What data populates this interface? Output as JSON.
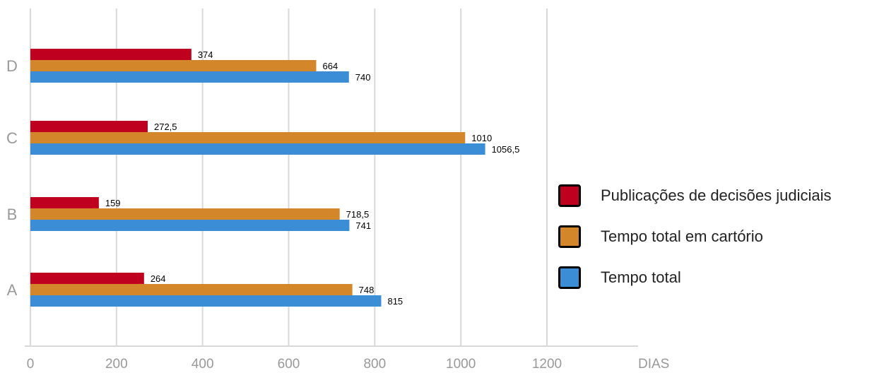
{
  "chart_data": {
    "type": "bar",
    "orientation": "horizontal",
    "categories": [
      "A",
      "B",
      "C",
      "D"
    ],
    "series": [
      {
        "name": "Publicações de decisões judiciais",
        "color": "#c0001f",
        "values": [
          264,
          159,
          272.5,
          374
        ],
        "labels": [
          "264",
          "159",
          "272,5",
          "374"
        ]
      },
      {
        "name": "Tempo total em cartório",
        "color": "#d4862a",
        "values": [
          748,
          718.5,
          1010,
          664
        ],
        "labels": [
          "748",
          "718,5",
          "1010",
          "664"
        ]
      },
      {
        "name": "Tempo total",
        "color": "#3b8ed6",
        "values": [
          815,
          741,
          1056.5,
          740
        ],
        "labels": [
          "815",
          "741",
          "1056,5",
          "740"
        ]
      }
    ],
    "xlim": [
      0,
      1400
    ],
    "xticks": [
      "0",
      "200",
      "400",
      "600",
      "800",
      "1000",
      "1200"
    ],
    "xlabel": "DIAS",
    "grid": true,
    "legend_position": "right"
  }
}
